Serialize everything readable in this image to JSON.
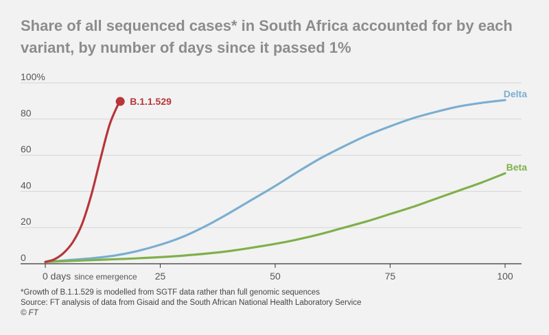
{
  "header": {
    "title": "Share of all sequenced cases* in South Africa accounted for by each variant, by number of days since it passed 1%"
  },
  "chart_data": {
    "type": "line",
    "title": "Share of all sequenced cases* in South Africa accounted for by each variant, by number of days since it passed 1%",
    "xlabel_suffix": "since emergence",
    "xlim": [
      0,
      100
    ],
    "ylim": [
      0,
      100
    ],
    "x_ticks": [
      {
        "value": 0,
        "label": "0 days"
      },
      {
        "value": 25,
        "label": "25"
      },
      {
        "value": 50,
        "label": "50"
      },
      {
        "value": 75,
        "label": "75"
      },
      {
        "value": 100,
        "label": "100"
      }
    ],
    "y_ticks": [
      {
        "value": 0,
        "label": "0"
      },
      {
        "value": 20,
        "label": "20"
      },
      {
        "value": 40,
        "label": "40"
      },
      {
        "value": 60,
        "label": "60"
      },
      {
        "value": 80,
        "label": "80"
      },
      {
        "value": 100,
        "label": "100%"
      }
    ],
    "grid": true,
    "series": [
      {
        "name": "Delta",
        "color": "#7aaed0",
        "x": [
          0,
          5,
          10,
          15,
          20,
          25,
          30,
          35,
          40,
          45,
          50,
          55,
          60,
          65,
          70,
          75,
          80,
          85,
          90,
          95,
          100
        ],
        "y": [
          1,
          2,
          3,
          4.5,
          7,
          10.5,
          15,
          21,
          28,
          35.5,
          43,
          51,
          58.5,
          65,
          71,
          76,
          80.5,
          84,
          87,
          89,
          90.5
        ]
      },
      {
        "name": "Beta",
        "color": "#7fb04a",
        "x": [
          0,
          10,
          20,
          30,
          40,
          50,
          55,
          60,
          65,
          70,
          75,
          80,
          85,
          90,
          95,
          100
        ],
        "y": [
          1,
          2,
          3,
          4.5,
          7,
          11,
          13.5,
          16.5,
          20,
          23.5,
          27.5,
          31.5,
          36,
          40.5,
          45,
          50
        ]
      },
      {
        "name": "B.1.1.529",
        "color": "#b8353a",
        "x": [
          0,
          2,
          4,
          6,
          8,
          10,
          12,
          14,
          16
        ],
        "y": [
          1,
          2.5,
          6,
          12,
          22,
          38,
          58,
          77,
          89
        ]
      }
    ],
    "annotations": [
      {
        "text": "B.1.1.529",
        "series": "B.1.1.529",
        "marker": "endpoint-dot"
      },
      {
        "text": "Delta",
        "series": "Delta"
      },
      {
        "text": "Beta",
        "series": "Beta"
      }
    ]
  },
  "footnotes": {
    "note": "*Growth of B.1.1.529 is modelled from SGTF data rather than full genomic sequences",
    "source": "Source: FT analysis of data from Gisaid and the South African National Health Laboratory Service",
    "credit": "© FT"
  }
}
